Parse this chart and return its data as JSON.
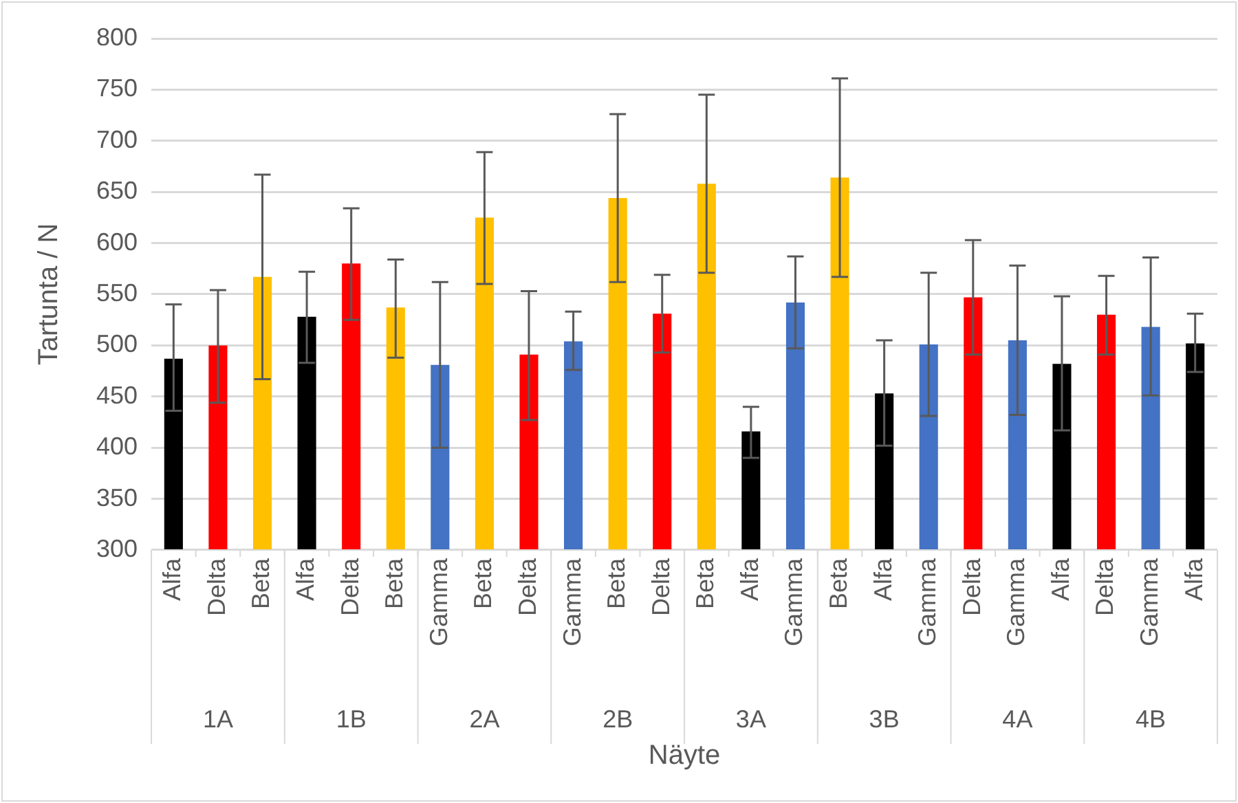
{
  "chart_data": {
    "type": "bar",
    "xlabel": "Näyte",
    "ylabel": "Tartunta / N",
    "categories": [
      "Alfa",
      "Delta",
      "Beta",
      "Alfa",
      "Delta",
      "Beta",
      "Gamma",
      "Beta",
      "Delta",
      "Gamma",
      "Beta",
      "Delta",
      "Beta",
      "Alfa",
      "Gamma",
      "Beta",
      "Alfa",
      "Gamma",
      "Delta",
      "Gamma",
      "Alfa",
      "Delta",
      "Gamma",
      "Alfa"
    ],
    "values": [
      487,
      500,
      567,
      528,
      580,
      537,
      481,
      625,
      491,
      504,
      644,
      531,
      658,
      416,
      542,
      664,
      453,
      501,
      547,
      505,
      482,
      530,
      518,
      502
    ],
    "colors": [
      "#000000",
      "#ff0000",
      "#ffc000",
      "#000000",
      "#ff0000",
      "#ffc000",
      "#4472c4",
      "#ffc000",
      "#ff0000",
      "#4472c4",
      "#ffc000",
      "#ff0000",
      "#ffc000",
      "#000000",
      "#4472c4",
      "#ffc000",
      "#000000",
      "#4472c4",
      "#ff0000",
      "#4472c4",
      "#000000",
      "#ff0000",
      "#4472c4",
      "#000000"
    ],
    "errors": [
      [
        436,
        540
      ],
      [
        444,
        554
      ],
      [
        467,
        667
      ],
      [
        483,
        572
      ],
      [
        525,
        634
      ],
      [
        488,
        584
      ],
      [
        400,
        562
      ],
      [
        560,
        689
      ],
      [
        427,
        553
      ],
      [
        476,
        533
      ],
      [
        562,
        726
      ],
      [
        493,
        569
      ],
      [
        571,
        745
      ],
      [
        390,
        440
      ],
      [
        497,
        587
      ],
      [
        567,
        761
      ],
      [
        402,
        505
      ],
      [
        431,
        571
      ],
      [
        491,
        603
      ],
      [
        432,
        578
      ],
      [
        417,
        548
      ],
      [
        491,
        568
      ],
      [
        451,
        586
      ],
      [
        474,
        531
      ]
    ],
    "annotations": [
      "1A",
      "1B",
      "2A",
      "2B",
      "3A",
      "3B",
      "4A",
      "4B"
    ],
    "ylim": [
      300,
      800
    ],
    "yticks": [
      300,
      350,
      400,
      450,
      500,
      550,
      600,
      650,
      700,
      750,
      800
    ],
    "grid": "y",
    "legend": false
  }
}
